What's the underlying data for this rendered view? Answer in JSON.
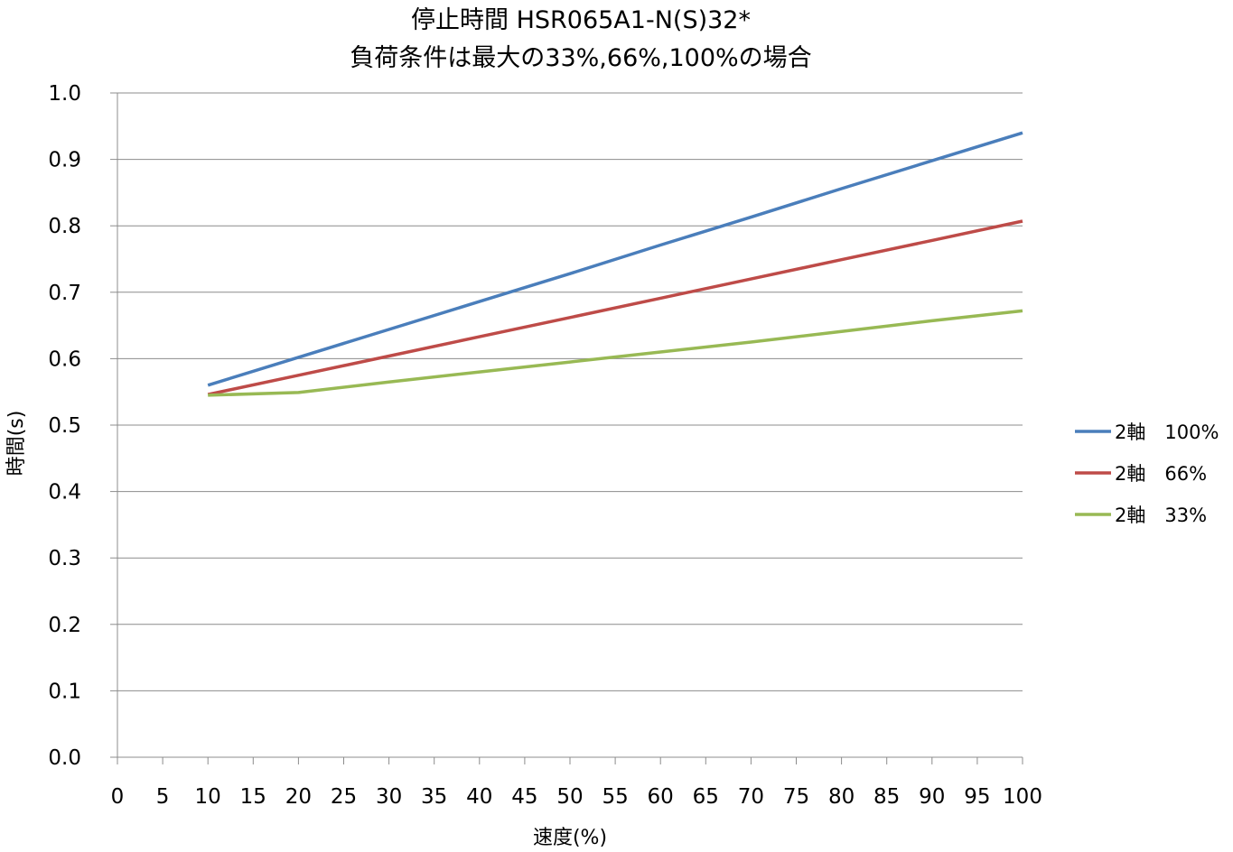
{
  "chart_data": {
    "type": "line",
    "title": "停止時間 HSR065A1-N(S)32*",
    "subtitle": "負荷条件は最大の33%,66%,100%の場合",
    "xlabel": "速度(%)",
    "ylabel": "時間(s)",
    "xlim": [
      0,
      100
    ],
    "ylim": [
      0.0,
      1.0
    ],
    "x_ticks": [
      "0",
      "5",
      "10",
      "15",
      "20",
      "25",
      "30",
      "35",
      "40",
      "45",
      "50",
      "55",
      "60",
      "65",
      "70",
      "75",
      "80",
      "85",
      "90",
      "95",
      "100"
    ],
    "y_ticks": [
      "0.0",
      "0.1",
      "0.2",
      "0.3",
      "0.4",
      "0.5",
      "0.6",
      "0.7",
      "0.8",
      "0.9",
      "1.0"
    ],
    "grid": "horizontal",
    "legend_position": "right",
    "x": [
      10,
      20,
      30,
      40,
      50,
      60,
      70,
      80,
      90,
      100
    ],
    "series": [
      {
        "name": "2軸　100%",
        "color": "#4a7ebb",
        "values": [
          0.56,
          0.602,
          0.644,
          0.686,
          0.728,
          0.771,
          0.813,
          0.856,
          0.898,
          0.94
        ]
      },
      {
        "name": "2軸　66%",
        "color": "#be4b48",
        "values": [
          0.546,
          0.575,
          0.604,
          0.633,
          0.662,
          0.691,
          0.72,
          0.749,
          0.778,
          0.807
        ]
      },
      {
        "name": "2軸　33%",
        "color": "#98b954",
        "values": [
          0.545,
          0.549,
          0.565,
          0.58,
          0.595,
          0.61,
          0.625,
          0.641,
          0.657,
          0.672
        ]
      }
    ]
  }
}
